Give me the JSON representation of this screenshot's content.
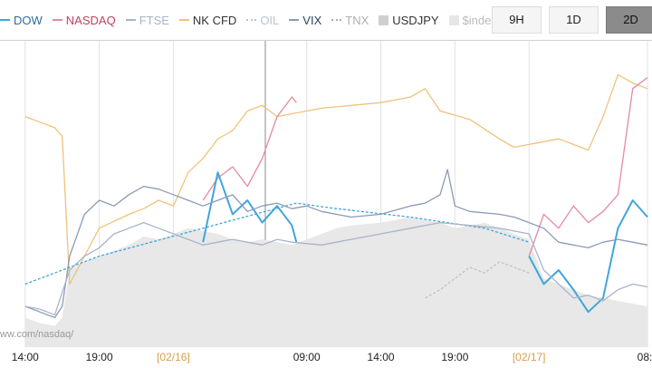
{
  "legend": [
    {
      "label": "DOW",
      "color": "#3fa6d9",
      "style": "solid"
    },
    {
      "label": "NASDAQ",
      "color": "#e48aa0",
      "style": "solid"
    },
    {
      "label": "FTSE",
      "color": "#a9b4c9",
      "style": "solid"
    },
    {
      "label": "NK CFD",
      "color": "#f0c27b",
      "style": "solid"
    },
    {
      "label": "OIL",
      "color": "#b9c4cf",
      "style": "dotted"
    },
    {
      "label": "VIX",
      "color": "#8c9ab6",
      "style": "solid"
    },
    {
      "label": "TNX",
      "color": "#b0b0b0",
      "style": "dotted"
    },
    {
      "label": "USDJPY",
      "color": "#cfcfcf",
      "style": "box"
    },
    {
      "label": "$index",
      "color": "#e6e6e6",
      "style": "box"
    }
  ],
  "ranges": {
    "buttons": [
      "9H",
      "1D",
      "2D"
    ],
    "active": "2D"
  },
  "source_text": "ww.com/nasdaq/",
  "chart_data": {
    "type": "line",
    "x_ticks": [
      {
        "label": "14:00",
        "hour": 14
      },
      {
        "label": "19:00",
        "hour": 19
      },
      {
        "label": "[02/16]",
        "hour": 24,
        "date": true
      },
      {
        "label": "09:00",
        "hour": 33
      },
      {
        "label": "14:00",
        "hour": 38
      },
      {
        "label": "19:00",
        "hour": 43
      },
      {
        "label": "[02/17]",
        "hour": 48,
        "date": true
      },
      {
        "label": "08:",
        "hour": 56
      }
    ],
    "series": [
      {
        "name": "NK CFD",
        "color": "#f0c27b",
        "points": [
          [
            14,
            80
          ],
          [
            15,
            78
          ],
          [
            16,
            76
          ],
          [
            16.5,
            73
          ],
          [
            17,
            20
          ],
          [
            18,
            30
          ],
          [
            19,
            40
          ],
          [
            21,
            45
          ],
          [
            22,
            47
          ],
          [
            23,
            50
          ],
          [
            24,
            48
          ],
          [
            25,
            60
          ],
          [
            26,
            65
          ],
          [
            27,
            72
          ],
          [
            28,
            75
          ],
          [
            29,
            82
          ],
          [
            30,
            84
          ],
          [
            31,
            80
          ],
          [
            32,
            81
          ],
          [
            34,
            83
          ],
          [
            36,
            84
          ],
          [
            38,
            85
          ],
          [
            40,
            87
          ],
          [
            41,
            90
          ],
          [
            42,
            82
          ],
          [
            44,
            79
          ],
          [
            46,
            72
          ],
          [
            47,
            69
          ],
          [
            48,
            70
          ],
          [
            49,
            71
          ],
          [
            50,
            72
          ],
          [
            51,
            70
          ],
          [
            52,
            68
          ],
          [
            53,
            80
          ],
          [
            54,
            95
          ],
          [
            55,
            92
          ],
          [
            56,
            90
          ]
        ]
      },
      {
        "name": "NASDAQ",
        "color": "#e48aa0",
        "points": [
          [
            26,
            50
          ],
          [
            27,
            58
          ],
          [
            28,
            62
          ],
          [
            29,
            55
          ],
          [
            30,
            65
          ],
          [
            31,
            80
          ],
          [
            32,
            87
          ],
          [
            32.3,
            85
          ]
        ]
      },
      {
        "name": "NASDAQ",
        "color": "#e48aa0",
        "points": [
          [
            48,
            30
          ],
          [
            49,
            45
          ],
          [
            50,
            40
          ],
          [
            51,
            48
          ],
          [
            52,
            42
          ],
          [
            53,
            46
          ],
          [
            54,
            52
          ],
          [
            55,
            90
          ],
          [
            56,
            94
          ]
        ]
      },
      {
        "name": "DOW",
        "color": "#3fa6d9",
        "width": 2,
        "points": [
          [
            26,
            35
          ],
          [
            27,
            60
          ],
          [
            28,
            45
          ],
          [
            29,
            50
          ],
          [
            30,
            42
          ],
          [
            31,
            48
          ],
          [
            32,
            41
          ],
          [
            32.3,
            35
          ]
        ]
      },
      {
        "name": "DOW",
        "color": "#3fa6d9",
        "width": 2,
        "points": [
          [
            48,
            30
          ],
          [
            49,
            20
          ],
          [
            50,
            25
          ],
          [
            51,
            18
          ],
          [
            52,
            10
          ],
          [
            53,
            15
          ],
          [
            54,
            40
          ],
          [
            55,
            50
          ],
          [
            56,
            44
          ]
        ]
      },
      {
        "name": "DOW",
        "color": "#3fa6d9",
        "dotted": true,
        "points": [
          [
            14,
            20
          ],
          [
            19,
            30
          ],
          [
            26,
            40
          ],
          [
            32.3,
            49
          ],
          [
            35,
            47
          ],
          [
            40,
            44
          ],
          [
            45,
            40
          ],
          [
            48,
            35
          ]
        ]
      },
      {
        "name": "VIX",
        "color": "#8c9ab6",
        "points": [
          [
            14,
            12
          ],
          [
            15,
            10
          ],
          [
            16,
            8
          ],
          [
            16.5,
            12
          ],
          [
            17,
            30
          ],
          [
            18,
            45
          ],
          [
            19,
            50
          ],
          [
            20,
            48
          ],
          [
            21,
            52
          ],
          [
            22,
            55
          ],
          [
            23,
            54
          ],
          [
            24,
            52
          ],
          [
            25,
            50
          ],
          [
            26,
            48
          ],
          [
            27,
            50
          ],
          [
            28,
            52
          ],
          [
            29,
            46
          ],
          [
            30,
            48
          ],
          [
            31,
            49
          ],
          [
            32,
            47
          ],
          [
            33,
            48
          ],
          [
            34,
            46
          ],
          [
            36,
            44
          ],
          [
            38,
            45
          ],
          [
            40,
            48
          ],
          [
            41,
            49
          ],
          [
            42,
            52
          ],
          [
            42.5,
            61
          ],
          [
            43,
            48
          ],
          [
            44,
            46
          ],
          [
            46,
            45
          ],
          [
            47,
            44
          ],
          [
            48,
            42
          ],
          [
            49,
            40
          ],
          [
            50,
            35
          ],
          [
            51,
            34
          ],
          [
            52,
            33
          ],
          [
            53,
            35
          ],
          [
            54,
            36
          ],
          [
            55,
            35
          ],
          [
            56,
            34
          ]
        ]
      },
      {
        "name": "FTSE",
        "color": "#a9b4c9",
        "points": [
          [
            14,
            12
          ],
          [
            15,
            11
          ],
          [
            16,
            9
          ],
          [
            17,
            25
          ],
          [
            18,
            30
          ],
          [
            19,
            33
          ],
          [
            20,
            38
          ],
          [
            21,
            40
          ],
          [
            22,
            42
          ],
          [
            23,
            40
          ],
          [
            24,
            38
          ],
          [
            25,
            36
          ],
          [
            26,
            34
          ],
          [
            27,
            35
          ],
          [
            28,
            36
          ],
          [
            29,
            35
          ],
          [
            30,
            34
          ],
          [
            31,
            36
          ],
          [
            32,
            35
          ],
          [
            34,
            34
          ],
          [
            36,
            36
          ],
          [
            38,
            38
          ],
          [
            40,
            40
          ],
          [
            42,
            42
          ],
          [
            44,
            41
          ],
          [
            46,
            40
          ],
          [
            48,
            38
          ],
          [
            49,
            25
          ],
          [
            50,
            20
          ],
          [
            51,
            15
          ],
          [
            52,
            16
          ],
          [
            53,
            14
          ],
          [
            54,
            18
          ],
          [
            55,
            20
          ],
          [
            56,
            19
          ]
        ]
      },
      {
        "name": "OIL",
        "color": "#b9c4cf",
        "dotted": true,
        "points": [
          [
            41,
            15
          ],
          [
            42,
            18
          ],
          [
            43,
            22
          ],
          [
            44,
            26
          ],
          [
            45,
            24
          ],
          [
            46,
            28
          ],
          [
            47,
            26
          ],
          [
            48,
            24
          ]
        ]
      },
      {
        "name": "$index",
        "color": "#e8e8e8",
        "area": true,
        "points": [
          [
            14,
            8
          ],
          [
            15,
            6
          ],
          [
            16,
            5
          ],
          [
            16.5,
            8
          ],
          [
            17,
            25
          ],
          [
            18,
            28
          ],
          [
            19,
            30
          ],
          [
            20,
            32
          ],
          [
            21,
            34
          ],
          [
            22,
            37
          ],
          [
            23,
            36
          ],
          [
            24,
            38
          ],
          [
            25,
            40
          ],
          [
            26,
            39
          ],
          [
            27,
            38
          ],
          [
            28,
            36
          ],
          [
            29,
            35
          ],
          [
            30,
            36
          ],
          [
            31,
            35
          ],
          [
            32,
            34
          ],
          [
            33,
            36
          ],
          [
            34,
            38
          ],
          [
            35,
            40
          ],
          [
            36,
            41
          ],
          [
            38,
            42
          ],
          [
            40,
            44
          ],
          [
            41,
            43
          ],
          [
            42,
            42
          ],
          [
            43,
            40
          ],
          [
            44,
            41
          ],
          [
            45,
            42
          ],
          [
            46,
            40
          ],
          [
            47,
            38
          ],
          [
            48,
            36
          ],
          [
            49,
            22
          ],
          [
            50,
            20
          ],
          [
            51,
            18
          ],
          [
            52,
            16
          ],
          [
            53,
            15
          ],
          [
            54,
            14
          ],
          [
            55,
            13
          ],
          [
            56,
            12
          ]
        ]
      }
    ]
  }
}
